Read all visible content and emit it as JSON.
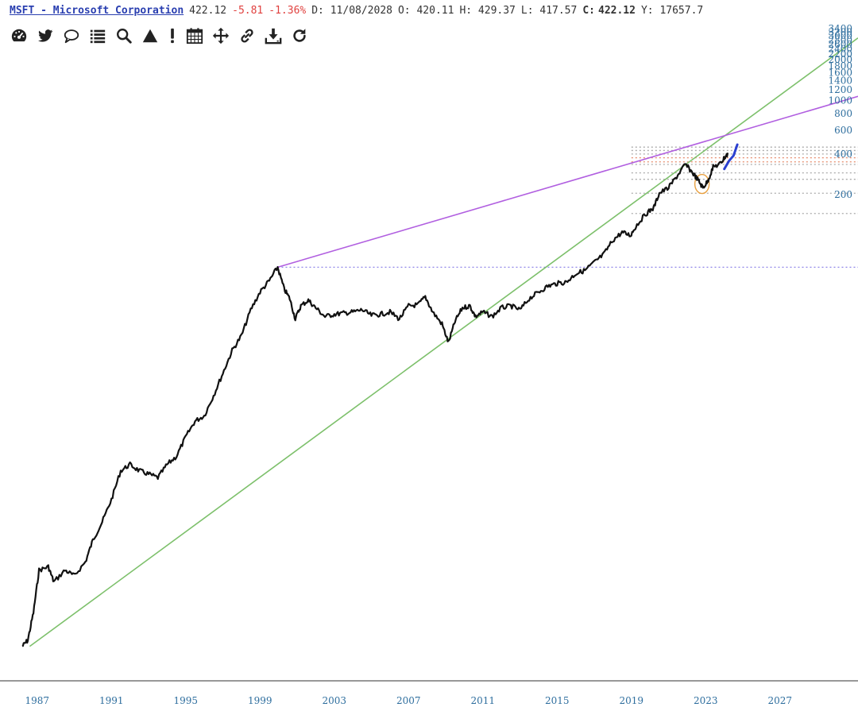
{
  "header": {
    "ticker": "MSFT - Microsoft Corporation",
    "last": "422.12",
    "change": "-5.81",
    "change_pct": "-1.36%",
    "date": "D: 11/08/2028",
    "open": "O: 420.11",
    "high": "H: 429.37",
    "low": "L: 417.57",
    "close_label": "C:",
    "close_value": "422.12",
    "volume": "Y: 17657.7"
  },
  "toolbar": {
    "icons": [
      "dashboard-icon",
      "twitter-icon",
      "comment-icon",
      "list-icon",
      "search-icon",
      "triangle-icon",
      "exclamation-icon",
      "calendar-icon",
      "move-icon",
      "link-icon",
      "download-icon",
      "refresh-icon"
    ]
  },
  "colors": {
    "price": "#111111",
    "trend_green": "#7dc06b",
    "trend_purple": "#b15fe0",
    "level_dotted": "#8f86e8",
    "axis_text": "#2e6e9e",
    "highlight": "#e8a040",
    "recent": "#2a3fd0"
  },
  "chart_data": {
    "type": "line",
    "title": "MSFT - Microsoft Corporation",
    "y_scale": "log",
    "xlabel": "",
    "ylabel": "",
    "x_ticks": [
      "1987",
      "1991",
      "1995",
      "1999",
      "2003",
      "2007",
      "2011",
      "2015",
      "2019",
      "2023",
      "2027"
    ],
    "y_ticks": [
      "200",
      "400",
      "600",
      "800",
      "1000",
      "1200",
      "1400",
      "1600",
      "1800",
      "2000",
      "2200",
      "2400",
      "2600",
      "2800",
      "3000",
      "3200",
      "3400"
    ],
    "xlim": [
      1985.0,
      2031.2
    ],
    "ylim": [
      0.05,
      3400
    ],
    "series": [
      {
        "name": "",
        "points": [
          [
            1986.2,
            0.09
          ],
          [
            1986.5,
            0.1
          ],
          [
            1986.8,
            0.16
          ],
          [
            1987.1,
            0.33
          ],
          [
            1987.6,
            0.35
          ],
          [
            1987.9,
            0.27
          ],
          [
            1988.5,
            0.33
          ],
          [
            1989.0,
            0.3
          ],
          [
            1989.6,
            0.38
          ],
          [
            1990.0,
            0.55
          ],
          [
            1990.5,
            0.75
          ],
          [
            1991.0,
            1.1
          ],
          [
            1991.5,
            1.8
          ],
          [
            1992.0,
            2.0
          ],
          [
            1992.5,
            1.8
          ],
          [
            1993.0,
            1.7
          ],
          [
            1993.5,
            1.6
          ],
          [
            1994.0,
            2.0
          ],
          [
            1994.5,
            2.3
          ],
          [
            1995.0,
            3.2
          ],
          [
            1995.5,
            4.2
          ],
          [
            1996.0,
            4.6
          ],
          [
            1996.5,
            6.5
          ],
          [
            1997.0,
            9.5
          ],
          [
            1997.5,
            14.0
          ],
          [
            1998.0,
            18.0
          ],
          [
            1998.5,
            28.0
          ],
          [
            1999.0,
            38.0
          ],
          [
            1999.5,
            46.0
          ],
          [
            1999.95,
            58.0
          ],
          [
            2000.3,
            40.0
          ],
          [
            2000.6,
            34.0
          ],
          [
            2000.9,
            24.0
          ],
          [
            2001.2,
            30.0
          ],
          [
            2001.6,
            33.0
          ],
          [
            2002.0,
            29.0
          ],
          [
            2002.5,
            25.0
          ],
          [
            2003.0,
            26.0
          ],
          [
            2003.5,
            26.5
          ],
          [
            2004.0,
            27.0
          ],
          [
            2004.5,
            28.0
          ],
          [
            2005.0,
            25.5
          ],
          [
            2005.5,
            26.0
          ],
          [
            2006.0,
            27.0
          ],
          [
            2006.5,
            24.0
          ],
          [
            2007.0,
            30.0
          ],
          [
            2007.5,
            30.5
          ],
          [
            2007.9,
            35.0
          ],
          [
            2008.3,
            27.0
          ],
          [
            2008.8,
            22.0
          ],
          [
            2009.15,
            16.0
          ],
          [
            2009.5,
            23.0
          ],
          [
            2009.9,
            29.0
          ],
          [
            2010.3,
            30.0
          ],
          [
            2010.6,
            25.0
          ],
          [
            2011.0,
            27.0
          ],
          [
            2011.5,
            25.0
          ],
          [
            2012.0,
            29.0
          ],
          [
            2012.5,
            30.0
          ],
          [
            2013.0,
            28.0
          ],
          [
            2013.5,
            34.0
          ],
          [
            2014.0,
            38.0
          ],
          [
            2014.5,
            42.0
          ],
          [
            2015.0,
            44.0
          ],
          [
            2015.5,
            45.0
          ],
          [
            2016.0,
            52.0
          ],
          [
            2016.5,
            55.0
          ],
          [
            2017.0,
            63.0
          ],
          [
            2017.5,
            72.0
          ],
          [
            2018.0,
            92.0
          ],
          [
            2018.5,
            105.0
          ],
          [
            2018.95,
            100.0
          ],
          [
            2019.3,
            120.0
          ],
          [
            2019.8,
            145.0
          ],
          [
            2020.2,
            160.0
          ],
          [
            2020.5,
            205.0
          ],
          [
            2021.0,
            225.0
          ],
          [
            2021.5,
            280.0
          ],
          [
            2021.9,
            335.0
          ],
          [
            2022.3,
            290.0
          ],
          [
            2022.6,
            255.0
          ],
          [
            2022.85,
            225.0
          ],
          [
            2023.1,
            250.0
          ],
          [
            2023.4,
            320.0
          ],
          [
            2023.8,
            340.0
          ],
          [
            2024.0,
            375.0
          ],
          [
            2024.2,
            400.0
          ]
        ]
      },
      {
        "name": "",
        "points": [
          [
            2024.0,
            310.0
          ],
          [
            2024.25,
            355.0
          ],
          [
            2024.5,
            390.0
          ],
          [
            2024.7,
            470.0
          ]
        ]
      }
    ],
    "trendlines": [
      {
        "name": "",
        "from": [
          1986.6,
          0.09
        ],
        "to": [
          2031.2,
          2900.0
        ]
      },
      {
        "name": "",
        "from": [
          1999.95,
          58.0
        ],
        "to": [
          2031.2,
          1070.0
        ]
      }
    ],
    "levels": [
      58.0,
      145.0,
      205.0,
      260.0,
      290.0,
      335.0,
      350.0,
      375.0,
      400.0,
      425.0,
      450.0
    ]
  }
}
